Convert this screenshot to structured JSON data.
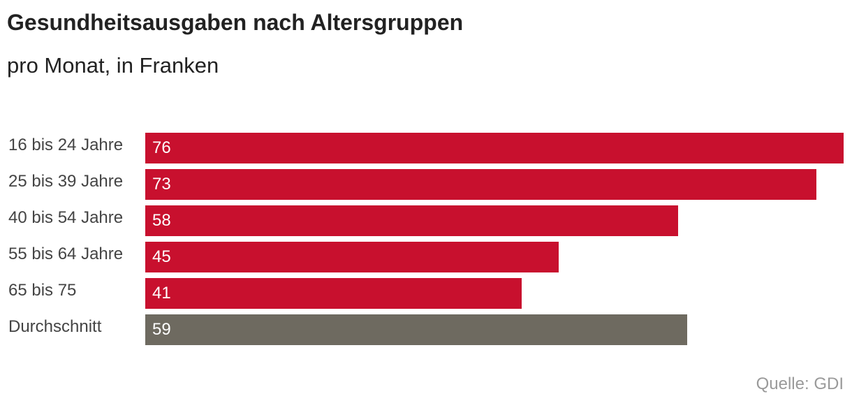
{
  "header": {
    "title": "Gesundheitsausgaben nach Altersgruppen",
    "subtitle": "pro Monat, in Franken"
  },
  "footer": {
    "source": "Quelle: GDI"
  },
  "colors": {
    "bar": "#c8102e",
    "highlight": "#6e6a60"
  },
  "chart_data": {
    "type": "bar",
    "orientation": "horizontal",
    "title": "Gesundheitsausgaben nach Altersgruppen",
    "subtitle": "pro Monat, in Franken",
    "categories": [
      "16 bis 24 Jahre",
      "25 bis 39 Jahre",
      "40 bis 54 Jahre",
      "55 bis 64 Jahre",
      "65 bis 75",
      "Durchschnitt"
    ],
    "values": [
      76,
      73,
      58,
      45,
      41,
      59
    ],
    "bar_colors": [
      "#c8102e",
      "#c8102e",
      "#c8102e",
      "#c8102e",
      "#c8102e",
      "#6e6a60"
    ],
    "xlim": [
      0,
      76
    ],
    "grid": false,
    "legend": "none",
    "source": "Quelle: GDI"
  }
}
